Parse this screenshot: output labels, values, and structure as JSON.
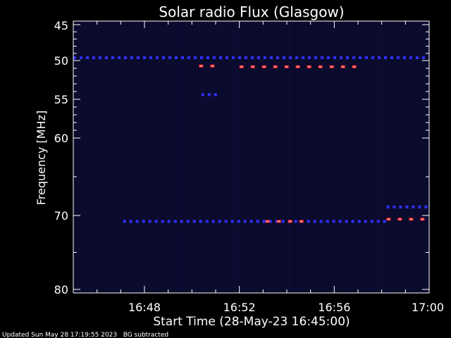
{
  "chart_data": {
    "type": "heatmap",
    "title": "Solar radio Flux (Glasgow)",
    "xlabel": "Start Time (28-May-23 16:45:00)",
    "ylabel": "Frequency [MHz]",
    "footer": "Updated Sun May 28 17:19:55 2023   BG subtracted",
    "x_ticks": [
      "16:48",
      "16:52",
      "16:56",
      "17:00"
    ],
    "y_ticks": [
      45,
      50,
      55,
      60,
      70,
      80
    ],
    "colors": {
      "low": "#0a0a2a",
      "mid": "#3030ff",
      "high": "#ff2020",
      "peak": "#ffe8e8"
    },
    "bands": [
      {
        "freq": 49.6,
        "t_start": 0.0,
        "t_end": 15.0,
        "intensity": "mid"
      },
      {
        "freq": 50.7,
        "t_start": 5.3,
        "t_end": 6.1,
        "intensity": "high"
      },
      {
        "freq": 50.8,
        "t_start": 7.0,
        "t_end": 12.2,
        "intensity": "high"
      },
      {
        "freq": 54.4,
        "t_start": 5.4,
        "t_end": 6.2,
        "intensity": "mid"
      },
      {
        "freq": 70.8,
        "t_start": 2.1,
        "t_end": 13.2,
        "intensity": "mid"
      },
      {
        "freq": 70.8,
        "t_start": 8.1,
        "t_end": 9.8,
        "intensity": "high"
      },
      {
        "freq": 68.9,
        "t_start": 13.2,
        "t_end": 15.0,
        "intensity": "mid"
      },
      {
        "freq": 70.5,
        "t_start": 13.2,
        "t_end": 15.0,
        "intensity": "high"
      }
    ]
  }
}
